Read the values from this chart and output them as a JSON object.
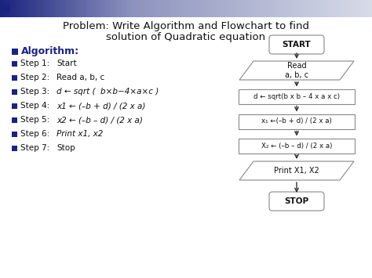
{
  "title_line1": "Problem: Write Algorithm and Flowchart to find",
  "title_line2": "solution of Quadratic equation",
  "algorithm_label": "Algorithm:",
  "steps": [
    [
      "Step 1:",
      "Start"
    ],
    [
      "Step 2:",
      "Read a, b, c"
    ],
    [
      "Step 3:",
      "d ← sqrt (  b×b−4×a×c )"
    ],
    [
      "Step 4:",
      "x1 ← (–b + d) / (2 x a)"
    ],
    [
      "Step 5:",
      "x2 ← (–b – d) / (2 x a)"
    ],
    [
      "Step 6:",
      "Print x1, x2"
    ],
    [
      "Step 7:",
      "Stop"
    ]
  ],
  "flowchart": {
    "start_label": "START",
    "read_label": "Read\na, b, c",
    "d_label": "d ← sqrt(b x b – 4 x a x c)",
    "x1_label": "x₁ ←(–b + d) / (2 x a)",
    "x2_label": "X₂ ← (–b – d) / (2 x a)",
    "print_label": "Print X1, X2",
    "stop_label": "STOP"
  },
  "bg_color": "#ffffff",
  "header_left_color": "#1a237e",
  "header_right_color": "#d8dce8",
  "bullet_color": "#1a237e",
  "text_color": "#111111",
  "algo_header_color": "#1a237e",
  "box_edge_color": "#888888",
  "arrow_color": "#333333"
}
